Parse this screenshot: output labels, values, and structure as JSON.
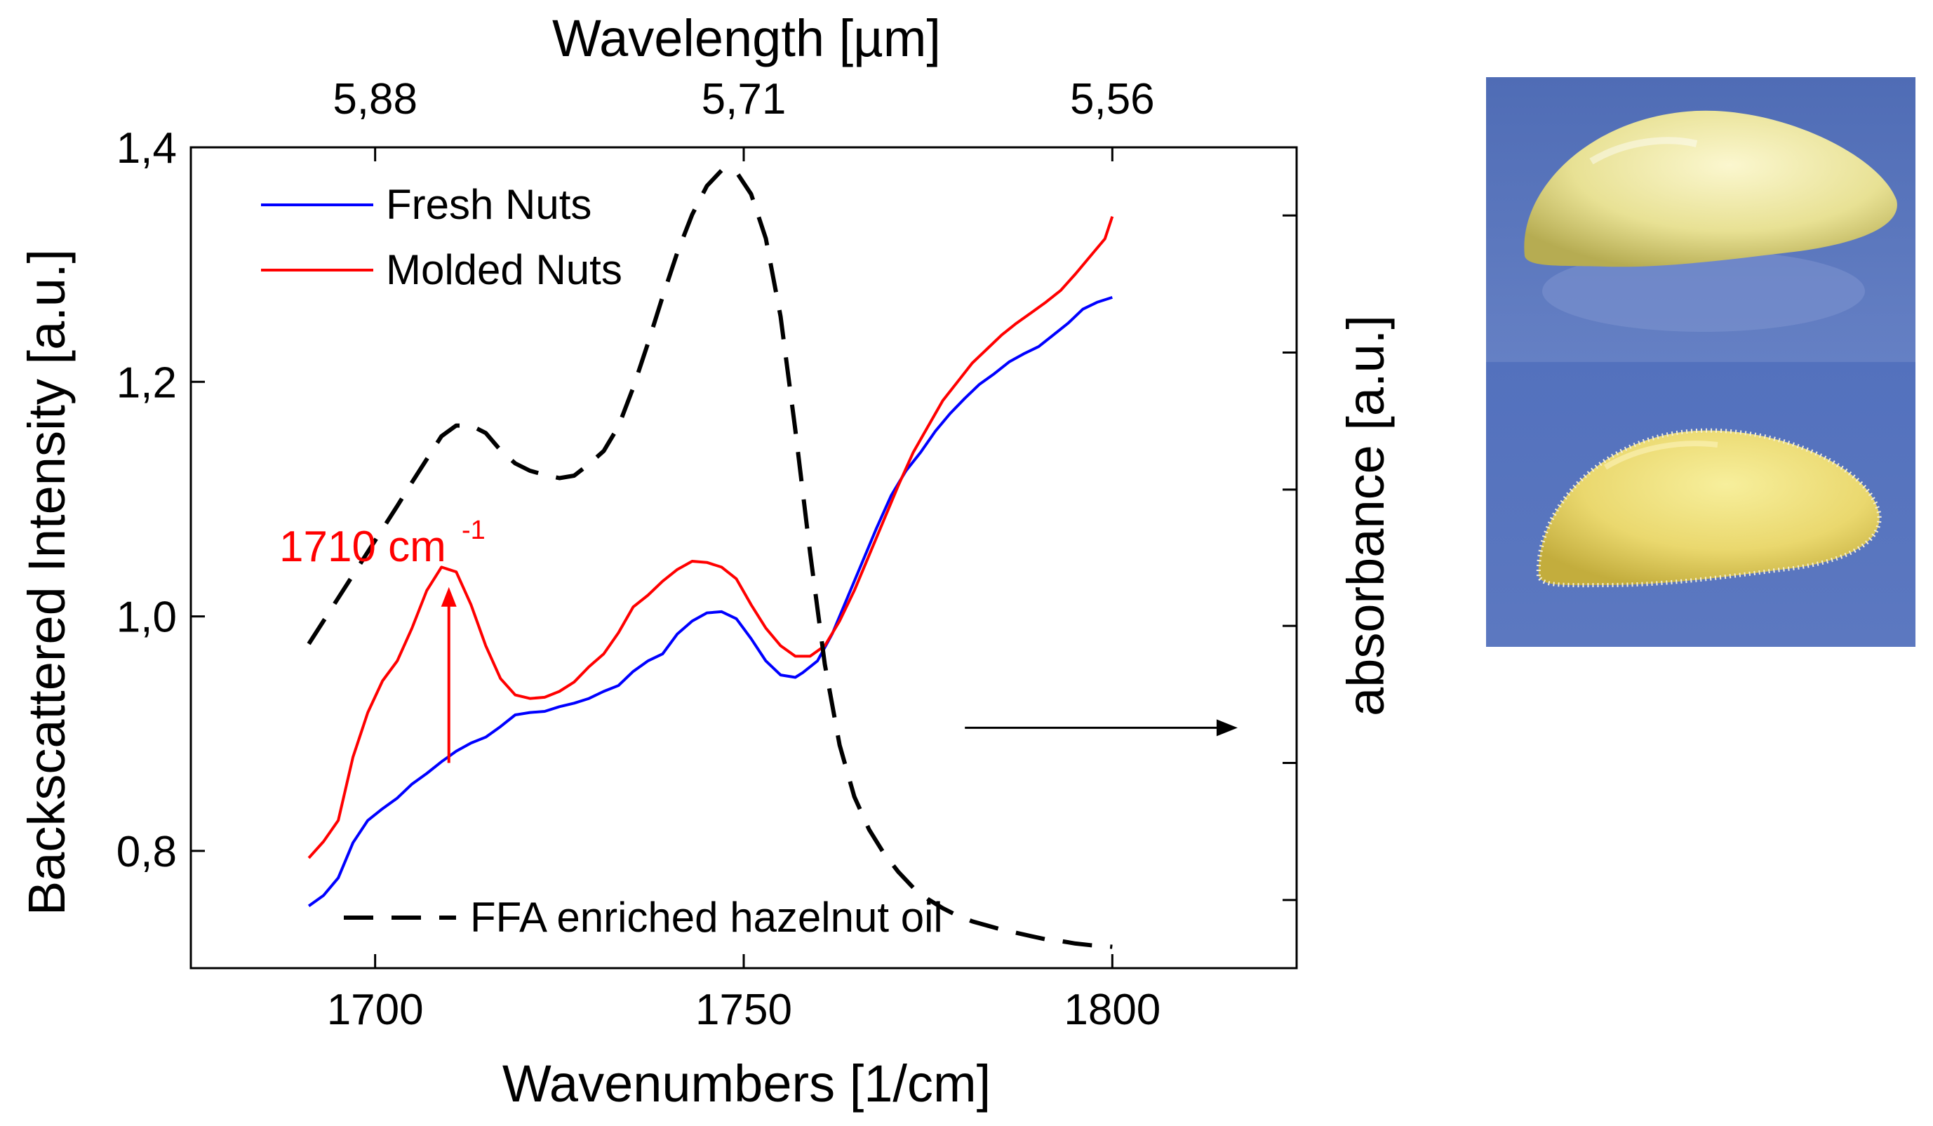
{
  "chart_data": {
    "type": "line",
    "title": "",
    "xlabel": "Wavenumbers [1/cm]",
    "ylabel": "Backscattered Intensity [a.u.]",
    "y2label": "absorbance [a.u.]",
    "top_axis_label": "Wavelength [µm]",
    "xlim": [
      1675,
      1825
    ],
    "ylim": [
      0.7,
      1.4
    ],
    "y2lim": [
      0,
      1
    ],
    "x_ticks": [
      1700,
      1750,
      1800
    ],
    "x_tick_labels": [
      "1700",
      "1750",
      "1800"
    ],
    "y_ticks": [
      0.8,
      1.0,
      1.2,
      1.4
    ],
    "y_tick_labels": [
      "0,8",
      "1,0",
      "1,2",
      "1,4"
    ],
    "top_ticks": [
      1700,
      1750,
      1800
    ],
    "top_tick_labels": [
      "5,88",
      "5,71",
      "5,56"
    ],
    "y2_ticks": [
      0.083,
      0.25,
      0.417,
      0.583,
      0.75,
      0.917
    ],
    "grid": false,
    "legend_position": "top-left",
    "series": [
      {
        "name": "Fresh Nuts",
        "color": "#0000ff",
        "style": "solid",
        "axis": "left",
        "x": [
          1691,
          1693,
          1695,
          1697,
          1699,
          1701,
          1703,
          1705,
          1707,
          1709,
          1711,
          1713,
          1715,
          1717,
          1719,
          1721,
          1723,
          1725,
          1727,
          1729,
          1731,
          1733,
          1735,
          1737,
          1739,
          1741,
          1743,
          1745,
          1747,
          1749,
          1751,
          1753,
          1755,
          1757,
          1758,
          1760,
          1762,
          1764,
          1766,
          1768,
          1770,
          1772,
          1774,
          1776,
          1778,
          1780,
          1782,
          1784,
          1786,
          1788,
          1790,
          1792,
          1794,
          1796,
          1798,
          1800
        ],
        "values": [
          0.753,
          0.762,
          0.777,
          0.807,
          0.826,
          0.836,
          0.845,
          0.857,
          0.866,
          0.876,
          0.885,
          0.892,
          0.897,
          0.906,
          0.916,
          0.918,
          0.919,
          0.923,
          0.926,
          0.93,
          0.936,
          0.941,
          0.953,
          0.962,
          0.968,
          0.985,
          0.996,
          1.003,
          1.004,
          0.998,
          0.981,
          0.962,
          0.95,
          0.948,
          0.952,
          0.962,
          0.985,
          1.015,
          1.045,
          1.075,
          1.103,
          1.124,
          1.14,
          1.158,
          1.173,
          1.186,
          1.198,
          1.207,
          1.217,
          1.224,
          1.23,
          1.24,
          1.25,
          1.262,
          1.268,
          1.272
        ]
      },
      {
        "name": "Molded Nuts",
        "color": "#ff0000",
        "style": "solid",
        "axis": "left",
        "x": [
          1691,
          1693,
          1695,
          1697,
          1699,
          1701,
          1703,
          1705,
          1707,
          1709,
          1711,
          1713,
          1715,
          1717,
          1719,
          1721,
          1723,
          1725,
          1727,
          1729,
          1731,
          1733,
          1735,
          1737,
          1739,
          1741,
          1743,
          1745,
          1747,
          1749,
          1751,
          1753,
          1755,
          1757,
          1759,
          1761,
          1763,
          1765,
          1767,
          1769,
          1771,
          1773,
          1775,
          1777,
          1779,
          1781,
          1783,
          1785,
          1787,
          1789,
          1791,
          1793,
          1795,
          1797,
          1799,
          1800
        ],
        "values": [
          0.794,
          0.808,
          0.826,
          0.88,
          0.918,
          0.945,
          0.962,
          0.99,
          1.022,
          1.042,
          1.038,
          1.01,
          0.975,
          0.947,
          0.933,
          0.93,
          0.931,
          0.936,
          0.944,
          0.957,
          0.968,
          0.986,
          1.008,
          1.018,
          1.03,
          1.04,
          1.047,
          1.046,
          1.042,
          1.032,
          1.01,
          0.99,
          0.975,
          0.966,
          0.966,
          0.975,
          0.996,
          1.022,
          1.052,
          1.082,
          1.112,
          1.14,
          1.162,
          1.184,
          1.2,
          1.216,
          1.228,
          1.24,
          1.25,
          1.259,
          1.268,
          1.278,
          1.292,
          1.307,
          1.322,
          1.341
        ]
      },
      {
        "name": "FFA enriched hazelnut oil",
        "color": "#000000",
        "style": "dashed",
        "axis": "right",
        "x": [
          1691,
          1694,
          1697,
          1700,
          1703,
          1705,
          1707,
          1709,
          1711,
          1713,
          1715,
          1717,
          1719,
          1721,
          1723,
          1725,
          1727,
          1729,
          1731,
          1733,
          1735,
          1737,
          1739,
          1741,
          1743,
          1745,
          1747,
          1749,
          1751,
          1753,
          1755,
          1757,
          1759,
          1761,
          1763,
          1765,
          1767,
          1769,
          1771,
          1773,
          1775,
          1777,
          1779,
          1781,
          1783,
          1785,
          1787,
          1789,
          1791,
          1793,
          1795,
          1797,
          1799,
          1800
        ],
        "values": [
          0.395,
          0.437,
          0.479,
          0.521,
          0.563,
          0.592,
          0.62,
          0.648,
          0.661,
          0.661,
          0.652,
          0.631,
          0.615,
          0.606,
          0.601,
          0.597,
          0.6,
          0.614,
          0.63,
          0.66,
          0.707,
          0.761,
          0.818,
          0.872,
          0.918,
          0.953,
          0.972,
          0.97,
          0.943,
          0.889,
          0.794,
          0.656,
          0.506,
          0.37,
          0.272,
          0.209,
          0.169,
          0.14,
          0.117,
          0.098,
          0.084,
          0.073,
          0.064,
          0.057,
          0.052,
          0.047,
          0.043,
          0.039,
          0.035,
          0.033,
          0.03,
          0.028,
          0.027,
          0.026
        ]
      }
    ],
    "annotations": [
      {
        "text": "1710 cm",
        "superscript": "-1",
        "color": "#ff0000",
        "arrow_x": 1710,
        "arrow_from_y": 0.875,
        "arrow_to_y": 1.025
      }
    ],
    "right_arrow": {
      "x_from": 1780,
      "x_to": 1817,
      "y": 0.905
    }
  },
  "images": [
    {
      "caption": "fresh hazelnut kernel photo"
    },
    {
      "caption": "molded hazelnut kernel photo"
    }
  ]
}
